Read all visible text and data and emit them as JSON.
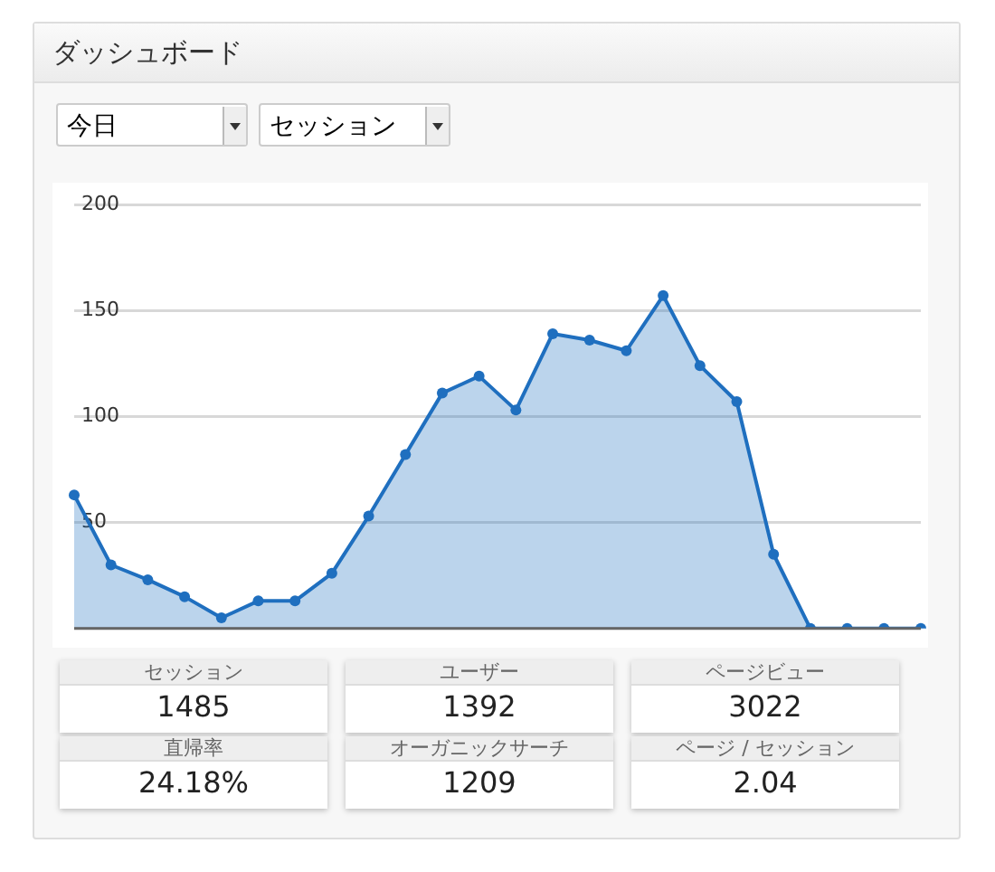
{
  "chart_data": [
    {
      "type": "area",
      "title": "ダッシュボード",
      "annotations": [
        "今日",
        "セッション"
      ],
      "categories": [
        null,
        null,
        null,
        null,
        null,
        null,
        null,
        null,
        null,
        null,
        null,
        null,
        null,
        null,
        null,
        null,
        null,
        null,
        null,
        null,
        null,
        null,
        null,
        null
      ],
      "series": [
        {
          "color": "#1f6fbf",
          "values": [
            63,
            30,
            23,
            15,
            5,
            13,
            13,
            26,
            53,
            82,
            111,
            119,
            103,
            139,
            136,
            131,
            157,
            124,
            107,
            35,
            0,
            0,
            0,
            0
          ]
        }
      ],
      "ylim": [
        0,
        200
      ],
      "yticks": [
        {
          "value": 0,
          "label": null
        },
        50,
        100,
        150,
        200
      ],
      "grid": "y",
      "legend": false,
      "marker": "circle",
      "line_style": "solid",
      "tick_labels": "y"
    },
    {
      "type": "other",
      "annotations": [
        "セッション",
        "1485",
        "ユーザー",
        "1392",
        "ページビュー",
        "3022",
        "直帰率",
        "24.18%",
        "オーガニックサーチ",
        "1209",
        "ページ / セッション",
        "2.04"
      ]
    }
  ]
}
